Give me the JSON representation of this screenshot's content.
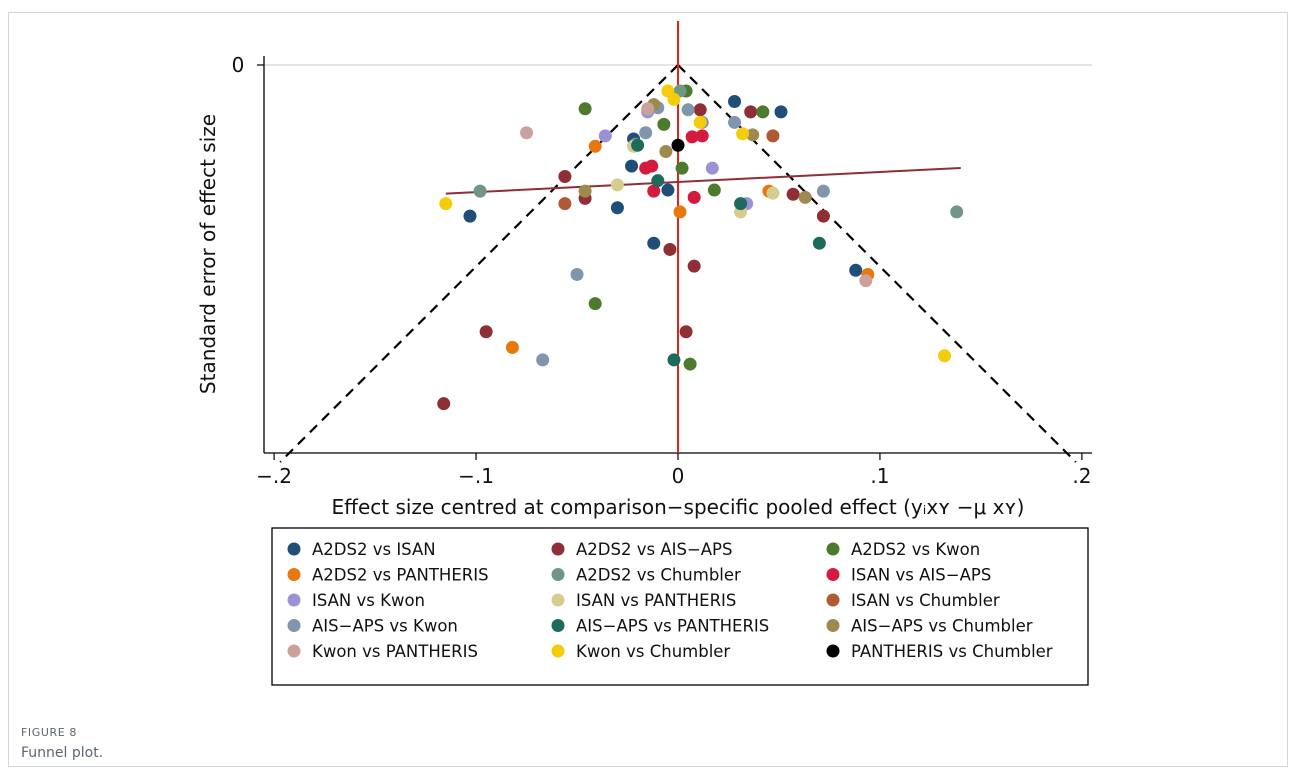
{
  "figure": {
    "label": "FIGURE 8",
    "caption": "Funnel plot."
  },
  "chart_data": {
    "type": "scatter",
    "title": "",
    "xlabel": "Effect size centred at comparison−specific pooled effect",
    "xlabel_suffix": "(yᵢxʏ −μ xʏ)",
    "ylabel": "Standard error of effect size",
    "xlim": [
      -0.205,
      0.205
    ],
    "ylim": [
      0.19,
      0
    ],
    "xticks": [
      -0.2,
      -0.1,
      0,
      0.1,
      0.2
    ],
    "xtick_labels": [
      "−.2",
      "−.1",
      "0",
      ".1",
      ".2"
    ],
    "yticks": [
      0
    ],
    "ytick_labels": [
      "0"
    ],
    "y_reversed": true,
    "grid": false,
    "legend_position": "bottom",
    "funnel": {
      "apex": [
        0,
        0
      ],
      "base_se": 0.1905,
      "base_x": [
        -0.197,
        0.197
      ]
    },
    "null_line_x": 0,
    "regression_line": {
      "x": [
        -0.115,
        0.14
      ],
      "y": [
        0.0617,
        0.0494
      ]
    },
    "series": [
      {
        "name": "A2DS2 vs ISAN",
        "color": "#1f4e79",
        "points": [
          [
            -0.103,
            0.0725
          ],
          [
            -0.03,
            0.0685
          ],
          [
            -0.023,
            0.0485
          ],
          [
            -0.022,
            0.0355
          ],
          [
            -0.012,
            0.0855
          ],
          [
            -0.005,
            0.06
          ],
          [
            0.028,
            0.0175
          ],
          [
            0.051,
            0.0225
          ],
          [
            0.088,
            0.0985
          ]
        ]
      },
      {
        "name": "A2DS2 vs AIS−APS",
        "color": "#8f2f35",
        "points": [
          [
            -0.116,
            0.1625
          ],
          [
            -0.095,
            0.128
          ],
          [
            -0.056,
            0.0535
          ],
          [
            -0.046,
            0.064
          ],
          [
            -0.004,
            0.0885
          ],
          [
            0.004,
            0.128
          ],
          [
            0.008,
            0.0965
          ],
          [
            0.011,
            0.0215
          ],
          [
            0.036,
            0.0225
          ],
          [
            0.057,
            0.062
          ],
          [
            0.072,
            0.0725
          ]
        ]
      },
      {
        "name": "A2DS2 vs Kwon",
        "color": "#4e7a2f",
        "points": [
          [
            -0.046,
            0.021
          ],
          [
            -0.041,
            0.1145
          ],
          [
            -0.007,
            0.0285
          ],
          [
            0.002,
            0.0495
          ],
          [
            0.004,
            0.0125
          ],
          [
            0.006,
            0.1435
          ],
          [
            0.018,
            0.06
          ],
          [
            0.042,
            0.0225
          ]
        ]
      },
      {
        "name": "A2DS2 vs PANTHERIS",
        "color": "#e8780e",
        "points": [
          [
            -0.082,
            0.1355
          ],
          [
            -0.041,
            0.039
          ],
          [
            0.001,
            0.0705
          ],
          [
            0.045,
            0.0605
          ],
          [
            0.094,
            0.1005
          ]
        ]
      },
      {
        "name": "A2DS2 vs Chumbler",
        "color": "#6f9787",
        "points": [
          [
            -0.098,
            0.0605
          ],
          [
            -0.021,
            0.038
          ],
          [
            0.001,
            0.0125
          ],
          [
            0.138,
            0.0705
          ]
        ]
      },
      {
        "name": "ISAN vs AIS−APS",
        "color": "#d21b3f",
        "points": [
          [
            -0.016,
            0.0495
          ],
          [
            -0.013,
            0.0485
          ],
          [
            -0.012,
            0.0605
          ],
          [
            0.007,
            0.0345
          ],
          [
            0.008,
            0.0635
          ],
          [
            0.012,
            0.034
          ]
        ]
      },
      {
        "name": "ISAN vs Kwon",
        "color": "#9b92d6",
        "points": [
          [
            -0.036,
            0.034
          ],
          [
            -0.015,
            0.0225
          ],
          [
            0.017,
            0.0495
          ],
          [
            0.034,
            0.0665
          ]
        ]
      },
      {
        "name": "ISAN vs PANTHERIS",
        "color": "#d5cc8f",
        "points": [
          [
            -0.03,
            0.0575
          ],
          [
            -0.022,
            0.039
          ],
          [
            0.031,
            0.0705
          ],
          [
            0.047,
            0.0615
          ]
        ]
      },
      {
        "name": "ISAN vs Chumbler",
        "color": "#b05a35",
        "points": [
          [
            -0.056,
            0.0665
          ],
          [
            0.047,
            0.034
          ]
        ]
      },
      {
        "name": "AIS−APS vs Kwon",
        "color": "#8096ad",
        "points": [
          [
            -0.05,
            0.1005
          ],
          [
            -0.067,
            0.1415
          ],
          [
            -0.016,
            0.0325
          ],
          [
            -0.01,
            0.0205
          ],
          [
            0.005,
            0.0215
          ],
          [
            0.012,
            0.0275
          ],
          [
            0.028,
            0.0275
          ],
          [
            0.072,
            0.0605
          ]
        ]
      },
      {
        "name": "AIS−APS vs PANTHERIS",
        "color": "#1e6b5e",
        "points": [
          [
            -0.02,
            0.0385
          ],
          [
            -0.01,
            0.0555
          ],
          [
            -0.002,
            0.1415
          ],
          [
            0.031,
            0.0665
          ],
          [
            0.07,
            0.0855
          ]
        ]
      },
      {
        "name": "AIS−APS vs Chumbler",
        "color": "#9e8a4f",
        "points": [
          [
            -0.046,
            0.0605
          ],
          [
            -0.012,
            0.019
          ],
          [
            -0.006,
            0.0415
          ],
          [
            0.037,
            0.0335
          ],
          [
            0.063,
            0.0635
          ]
        ]
      },
      {
        "name": "Kwon vs PANTHERIS",
        "color": "#c9a39b",
        "points": [
          [
            -0.075,
            0.0325
          ],
          [
            -0.015,
            0.021
          ],
          [
            0.093,
            0.1035
          ]
        ]
      },
      {
        "name": "Kwon vs Chumbler",
        "color": "#f5cc0a",
        "points": [
          [
            -0.115,
            0.0665
          ],
          [
            -0.005,
            0.0125
          ],
          [
            -0.002,
            0.0165
          ],
          [
            0.011,
            0.0275
          ],
          [
            0.032,
            0.033
          ],
          [
            0.132,
            0.1395
          ]
        ]
      },
      {
        "name": "PANTHERIS vs Chumbler",
        "color": "#000000",
        "points": [
          [
            0.0,
            0.0385
          ]
        ]
      }
    ]
  }
}
